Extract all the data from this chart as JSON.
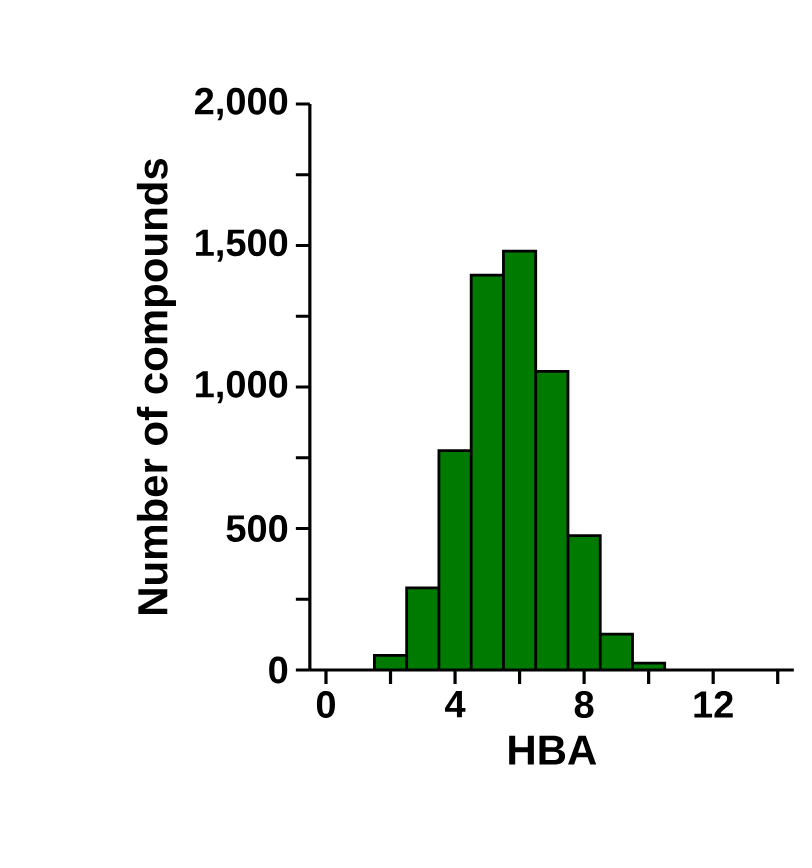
{
  "chart_data": {
    "type": "histogram",
    "xlabel": "HBA",
    "ylabel": "Number of compounds",
    "bins": [
      1.5,
      2.5,
      3.5,
      4.5,
      5.5,
      6.5,
      7.5,
      8.5,
      9.5,
      10.5
    ],
    "values": [
      52,
      290,
      775,
      1395,
      1480,
      1055,
      475,
      127,
      24
    ],
    "color": "#007a00",
    "xlim": [
      -0.5,
      14.5
    ],
    "xticks": [
      0,
      {
        "value": 2,
        "label": null
      },
      4,
      {
        "value": 6,
        "label": null
      },
      8,
      {
        "value": 10,
        "label": null
      },
      12,
      {
        "value": 14,
        "label": null
      }
    ],
    "ylim": [
      0,
      2000
    ],
    "yticks": [
      0,
      {
        "value": 250,
        "label": null
      },
      {
        "value": 500,
        "label": "500"
      },
      {
        "value": 750,
        "label": null
      },
      {
        "value": 1000,
        "label": "1,000"
      },
      {
        "value": 1250,
        "label": null
      },
      {
        "value": 1500,
        "label": "1,500"
      },
      {
        "value": 1750,
        "label": null
      },
      {
        "value": 2000,
        "label": "2,000"
      }
    ],
    "grid": false
  }
}
